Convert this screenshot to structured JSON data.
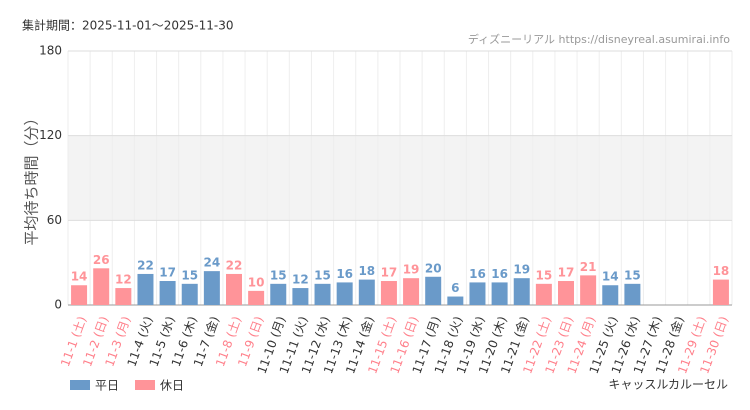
{
  "header": "集計期間：2025-11-01～2025-11-30",
  "source": "ディズニーリアル https://disneyreal.asumirai.info",
  "attraction": "キャッスルカルーセル",
  "chart_data": {
    "type": "bar",
    "y_label": "平均待ち時間（分）",
    "categories": [
      "11-1 (土)",
      "11-2 (日)",
      "11-3 (月)",
      "11-4 (火)",
      "11-5 (水)",
      "11-6 (木)",
      "11-7 (金)",
      "11-8 (土)",
      "11-9 (日)",
      "11-10 (月)",
      "11-11 (火)",
      "11-12 (水)",
      "11-13 (木)",
      "11-14 (金)",
      "11-15 (土)",
      "11-16 (日)",
      "11-17 (月)",
      "11-18 (火)",
      "11-19 (水)",
      "11-20 (木)",
      "11-21 (金)",
      "11-22 (土)",
      "11-23 (日)",
      "11-24 (月)",
      "11-25 (火)",
      "11-26 (水)",
      "11-27 (木)",
      "11-28 (金)",
      "11-29 (土)",
      "11-30 (日)"
    ],
    "x_label_colors": [
      "#ff7f8a",
      "#ff7f8a",
      "#ff7f8a",
      "#333333",
      "#333333",
      "#333333",
      "#333333",
      "#ff7f8a",
      "#ff7f8a",
      "#333333",
      "#333333",
      "#333333",
      "#333333",
      "#333333",
      "#ff7f8a",
      "#ff7f8a",
      "#333333",
      "#333333",
      "#333333",
      "#333333",
      "#333333",
      "#ff7f8a",
      "#ff7f8a",
      "#ff7f8a",
      "#333333",
      "#333333",
      "#333333",
      "#333333",
      "#ff7f8a",
      "#ff7f8a"
    ],
    "series": [
      {
        "name": "平日",
        "color": "#6a9ac9",
        "values": [
          null,
          null,
          null,
          22,
          17,
          15,
          24,
          null,
          null,
          15,
          12,
          15,
          16,
          18,
          null,
          null,
          20,
          6,
          16,
          16,
          19,
          null,
          null,
          null,
          14,
          15,
          null,
          null,
          null,
          null
        ]
      },
      {
        "name": "休日",
        "color": "#ff9499",
        "values": [
          14,
          26,
          12,
          null,
          null,
          null,
          null,
          22,
          10,
          null,
          null,
          null,
          null,
          null,
          17,
          19,
          null,
          null,
          null,
          null,
          null,
          15,
          17,
          21,
          null,
          null,
          null,
          null,
          null,
          18
        ]
      }
    ],
    "ylim": [
      0,
      180
    ],
    "yticks": [
      0,
      60,
      120,
      180
    ],
    "grid": true,
    "legend": "bottom-left"
  }
}
